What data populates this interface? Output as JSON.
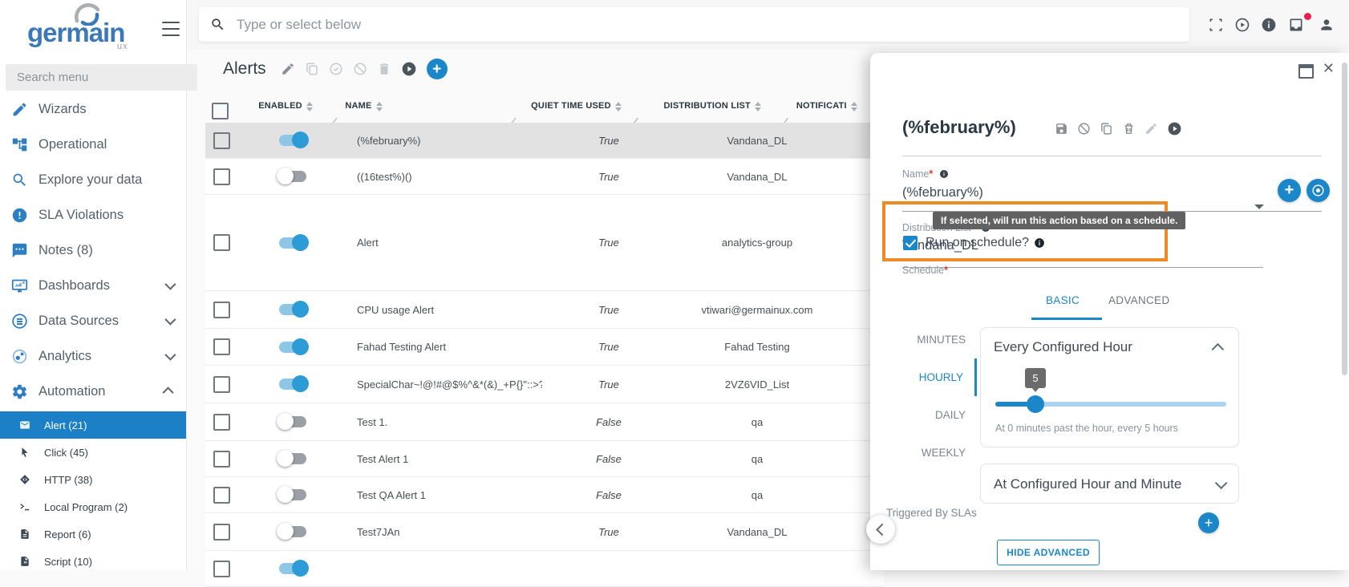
{
  "topbar": {
    "search_placeholder": "Type or select below"
  },
  "sidebar": {
    "logo_text": "germain",
    "logo_sub": "ux",
    "search_placeholder": "Search menu",
    "items": [
      {
        "label": "Wizards",
        "icon": "pencil-icon"
      },
      {
        "label": "Operational",
        "icon": "sitemap-icon"
      },
      {
        "label": "Explore your data",
        "icon": "search-icon"
      },
      {
        "label": "SLA Violations",
        "icon": "alert-circle-icon"
      },
      {
        "label": "Notes (8)",
        "icon": "chat-icon"
      },
      {
        "label": "Dashboards",
        "icon": "dashboard-icon",
        "chevron": "down"
      },
      {
        "label": "Data Sources",
        "icon": "database-icon",
        "chevron": "down"
      },
      {
        "label": "Analytics",
        "icon": "analytics-icon",
        "chevron": "down"
      },
      {
        "label": "Automation",
        "icon": "gear-icon",
        "chevron": "up"
      }
    ],
    "subitems": [
      {
        "label": "Alert (21)",
        "icon": "envelope-icon",
        "selected": true
      },
      {
        "label": "Click (45)",
        "icon": "cursor-icon"
      },
      {
        "label": "HTTP (38)",
        "icon": "diamond-icon"
      },
      {
        "label": "Local Program (2)",
        "icon": "terminal-icon"
      },
      {
        "label": "Report (6)",
        "icon": "report-icon"
      },
      {
        "label": "Script (10)",
        "icon": "script-icon"
      }
    ]
  },
  "alerts": {
    "title": "Alerts"
  },
  "table": {
    "columns": [
      "ENABLED",
      "NAME",
      "QUIET TIME USED",
      "DISTRIBUTION LIST",
      "NOTIFICATI"
    ],
    "rows": [
      {
        "name": "(%february%)",
        "enabled": true,
        "quiet_time_used": "True",
        "distribution_list": "Vandana_DL",
        "selected": true
      },
      {
        "name": "((16test%)()",
        "enabled": false,
        "quiet_time_used": "True",
        "distribution_list": "Vandana_DL"
      },
      {
        "name": "Alert",
        "enabled": true,
        "quiet_time_used": "True",
        "distribution_list": "analytics-group"
      },
      {
        "name": "CPU usage Alert",
        "enabled": true,
        "quiet_time_used": "True",
        "distribution_list": "vtiwari@germainux.com"
      },
      {
        "name": "Fahad Testing Alert",
        "enabled": true,
        "quiet_time_used": "True",
        "distribution_list": "Fahad Testing"
      },
      {
        "name": "SpecialChar~!@!#@$%^&*(&)_+P{}\"::>?<,.;...",
        "enabled": true,
        "quiet_time_used": "True",
        "distribution_list": "2VZ6VID_List"
      },
      {
        "name": "Test 1.",
        "enabled": false,
        "quiet_time_used": "False",
        "distribution_list": "qa"
      },
      {
        "name": "Test Alert 1",
        "enabled": false,
        "quiet_time_used": "False",
        "distribution_list": "qa"
      },
      {
        "name": "Test QA Alert 1",
        "enabled": false,
        "quiet_time_used": "False",
        "distribution_list": "qa"
      },
      {
        "name": "Test7JAn",
        "enabled": false,
        "quiet_time_used": "True",
        "distribution_list": "Vandana_DL"
      },
      {
        "name": "",
        "enabled": true,
        "quiet_time_used": "",
        "distribution_list": ""
      }
    ]
  },
  "panel": {
    "title": "(%february%)",
    "required_mark": "*",
    "name_label": "Name",
    "name_value": "(%february%)",
    "dist_label": "Distribution List",
    "dist_value": "Vandana_DL",
    "tooltip": "If selected, will run this action based on a schedule.",
    "run_on_schedule_label": "Run on schedule?",
    "schedule_label": "Schedule",
    "tabs": [
      {
        "label": "BASIC",
        "active": true
      },
      {
        "label": "ADVANCED",
        "active": false
      }
    ],
    "side_tabs": [
      {
        "label": "MINUTES",
        "active": false
      },
      {
        "label": "HOURLY",
        "active": true
      },
      {
        "label": "DAILY",
        "active": false
      },
      {
        "label": "WEEKLY",
        "active": false
      }
    ],
    "hour_card_title": "Every Configured Hour",
    "slider_value": "5",
    "slider_caption": "At 0 minutes past the hour, every 5 hours",
    "minute_card_title": "At Configured Hour and Minute",
    "triggered_label": "Triggered By SLAs",
    "hide_advanced_label": "HIDE ADVANCED"
  },
  "colors": {
    "accent": "#1b87c9",
    "highlight_orange": "#ee8b24",
    "toggle_on": "#2d9bd6",
    "selected_row": "#e2e2e3",
    "notification_dot": "#e91e4e",
    "required": "#e53935"
  }
}
